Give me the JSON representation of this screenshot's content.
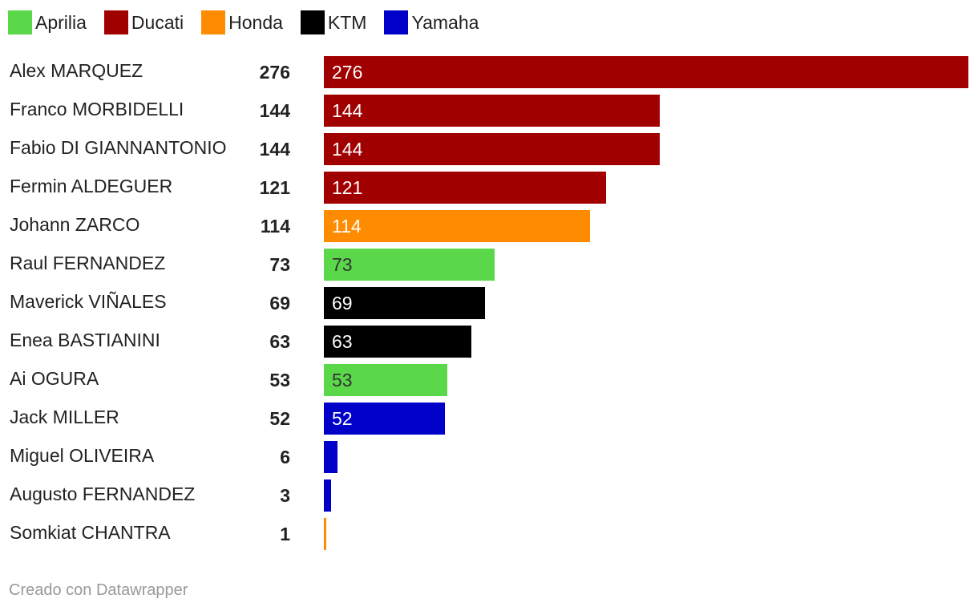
{
  "chart_data": {
    "type": "bar",
    "orientation": "horizontal",
    "legend": [
      {
        "name": "Aprilia",
        "color": "#5ad84a"
      },
      {
        "name": "Ducati",
        "color": "#a10000"
      },
      {
        "name": "Honda",
        "color": "#ff8c00"
      },
      {
        "name": "KTM",
        "color": "#000000"
      },
      {
        "name": "Yamaha",
        "color": "#0000c8"
      }
    ],
    "rows": [
      {
        "rider": "Alex MARQUEZ",
        "value": 276,
        "manufacturer": "Ducati"
      },
      {
        "rider": "Franco MORBIDELLI",
        "value": 144,
        "manufacturer": "Ducati"
      },
      {
        "rider": "Fabio DI GIANNANTONIO",
        "value": 144,
        "manufacturer": "Ducati"
      },
      {
        "rider": "Fermin ALDEGUER",
        "value": 121,
        "manufacturer": "Ducati"
      },
      {
        "rider": "Johann ZARCO",
        "value": 114,
        "manufacturer": "Honda"
      },
      {
        "rider": "Raul FERNANDEZ",
        "value": 73,
        "manufacturer": "Aprilia"
      },
      {
        "rider": "Maverick VIÑALES",
        "value": 69,
        "manufacturer": "KTM"
      },
      {
        "rider": "Enea BASTIANINI",
        "value": 63,
        "manufacturer": "KTM"
      },
      {
        "rider": "Ai OGURA",
        "value": 53,
        "manufacturer": "Aprilia"
      },
      {
        "rider": "Jack MILLER",
        "value": 52,
        "manufacturer": "Yamaha"
      },
      {
        "rider": "Miguel OLIVEIRA",
        "value": 6,
        "manufacturer": "Yamaha"
      },
      {
        "rider": "Augusto FERNANDEZ",
        "value": 3,
        "manufacturer": "Yamaha"
      },
      {
        "rider": "Somkiat CHANTRA",
        "value": 1,
        "manufacturer": "Honda"
      }
    ],
    "xlim": [
      0,
      276
    ],
    "grid": false
  },
  "footer": "Creado con Datawrapper"
}
